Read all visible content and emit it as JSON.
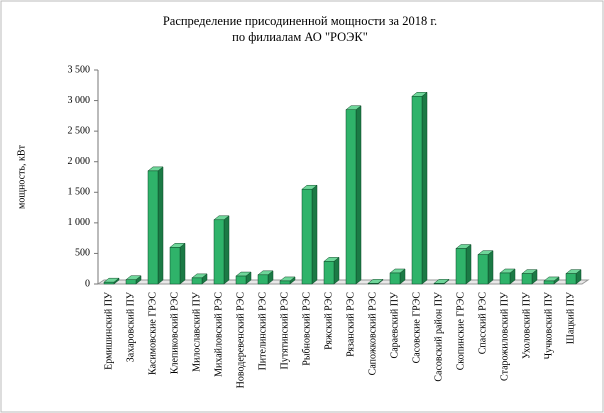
{
  "chart_data": {
    "type": "bar3d",
    "title": "Распределение присодиненной мощности за 2018 г.",
    "subtitle": "по филиалам АО \"РОЭК\"",
    "y_label": "мощность, кВт",
    "categories": [
      "Ермишинский ПУ",
      "Захаровский ПУ",
      "Касимовские ГРЭС",
      "Клепиковский РЭС",
      "Милославский ПУ",
      "Михайловский РЭС",
      "Новодеревенский РЭС",
      "Пителинский РЭС",
      "Путятинский РЭС",
      "Рыбновский РЭС",
      "Ряжский РЭС",
      "Рязанский РЭС",
      "Сапожковский РЭС",
      "Сараевский ПУ",
      "Сасовские ГРЭС",
      "Сасовский район ПУ",
      "Скопинские ГРЭС",
      "Спасский РЭС",
      "Старожиловский ПУ",
      "Ухоловский ПУ",
      "Чучковский ПУ",
      "Шацкий ПУ"
    ],
    "values": [
      30,
      70,
      1850,
      600,
      100,
      1050,
      130,
      150,
      50,
      1550,
      370,
      2850,
      10,
      180,
      3070,
      10,
      580,
      480,
      180,
      170,
      50,
      170
    ],
    "color": "#2fb36a",
    "ylim": [
      0,
      3500
    ],
    "yticks": [
      0,
      500,
      {
        "value": 1000,
        "label": "1 000"
      },
      {
        "value": 1500,
        "label": "1 500"
      },
      {
        "value": 2000,
        "label": "2 000"
      },
      {
        "value": 2500,
        "label": "2 500"
      },
      {
        "value": 3000,
        "label": "3 000"
      },
      {
        "value": 3500,
        "label": "3 500"
      }
    ],
    "grid": false
  }
}
